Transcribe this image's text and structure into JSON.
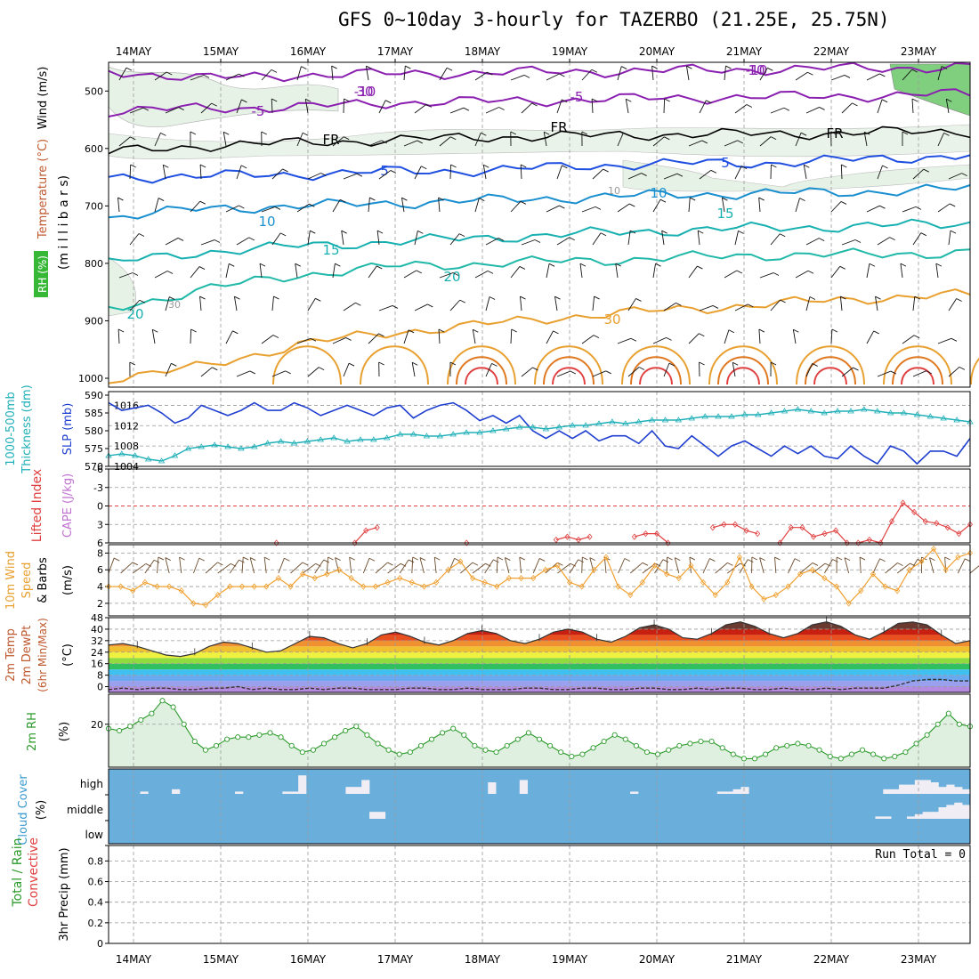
{
  "title": "GFS 0~10day 3-hourly for TAZERBO (21.25E, 25.75N)",
  "run_total": "Run Total = 0",
  "dates": [
    "14MAY",
    "15MAY",
    "16MAY",
    "17MAY",
    "18MAY",
    "19MAY",
    "20MAY",
    "21MAY",
    "22MAY",
    "23MAY"
  ],
  "colors": {
    "grid": "#9a9a9a",
    "slp": "#1f3fd0",
    "thickness": "#20b0b8",
    "lifted": "#e04040",
    "wind10": "#f0a030",
    "barb": "#6b4a2a",
    "rh": "#2a9a2a",
    "rhfill": "#e0f0e0",
    "cloud_bg": "#6aaedc",
    "cloud_hi": "#f0eef4",
    "temp_line": "#000000"
  },
  "chart_data": [
    {
      "type": "contour",
      "name": "upper-air",
      "ylabel_parts": [
        "RH (%)",
        "Temperature (°C)",
        "Wind (m/s)"
      ],
      "axis_label": "(m i l l i b a r s)",
      "y_ticks": [
        500,
        600,
        700,
        800,
        900,
        1000
      ],
      "ylim": [
        450,
        1000
      ],
      "isotherms": [
        {
          "label": "-10",
          "level": [
            465,
            478,
            472,
            470,
            468,
            466,
            464,
            462,
            460,
            458
          ]
        },
        {
          "label": "-5",
          "level": [
            535,
            530,
            528,
            520,
            518,
            515,
            512,
            510,
            508,
            505
          ]
        },
        {
          "label": "FR",
          "level": [
            607,
            595,
            590,
            585,
            580,
            578,
            575,
            575,
            572,
            570
          ]
        },
        {
          "label": "5",
          "level": [
            650,
            648,
            645,
            640,
            638,
            630,
            626,
            625,
            618,
            612
          ]
        },
        {
          "label": "10",
          "level": [
            720,
            705,
            700,
            695,
            690,
            685,
            680,
            678,
            675,
            670
          ]
        },
        {
          "label": "15",
          "level": [
            800,
            780,
            770,
            762,
            755,
            748,
            742,
            738,
            735,
            730
          ]
        },
        {
          "label": "20",
          "level": [
            880,
            845,
            820,
            805,
            800,
            795,
            790,
            785,
            785,
            780
          ]
        },
        {
          "label": "30",
          "level": [
            1000,
            980,
            940,
            920,
            905,
            890,
            880,
            870,
            860,
            855
          ]
        }
      ],
      "labels_text": [
        "-10",
        "-10",
        "-5",
        "-5",
        "FR",
        "FR",
        "FR",
        "5",
        "5",
        "10",
        "10",
        "10",
        "15",
        "15",
        "20",
        "20",
        "30",
        "30",
        "10",
        "30"
      ]
    },
    {
      "type": "line",
      "name": "slp-thickness",
      "ylabel_left": [
        "1000-500mb",
        "Thickness (dm)"
      ],
      "ylabel_right": "SLP (mb)",
      "left_ticks": [
        570,
        575,
        580,
        585,
        590
      ],
      "right_ticks": [
        1004,
        1008,
        1012,
        1016
      ],
      "series": [
        {
          "name": "SLP (mb)",
          "values": [
            1016.5,
            1015,
            1015.5,
            1016,
            1014.5,
            1012.5,
            1013.5,
            1016,
            1015,
            1014,
            1015,
            1016.5,
            1015,
            1015,
            1016.5,
            1015.5,
            1014,
            1015,
            1016,
            1015,
            1014,
            1015.5,
            1016,
            1013.5,
            1015,
            1016,
            1016.5,
            1015,
            1013,
            1014,
            1012.5,
            1014,
            1011,
            1009.5,
            1011,
            1009.5,
            1011,
            1009,
            1010,
            1010,
            1008.5,
            1011,
            1008,
            1007.5,
            1010,
            1008,
            1006,
            1008,
            1009,
            1007.5,
            1006,
            1008,
            1006.5,
            1008,
            1006,
            1005.5,
            1008,
            1006,
            1004.5,
            1008,
            1007,
            1004.5,
            1007,
            1007,
            1006,
            1009.5
          ]
        },
        {
          "name": "1000-500mb Thickness (dm)",
          "values": [
            573,
            573.5,
            573,
            572,
            571.5,
            573,
            575,
            575.5,
            576,
            575.5,
            575,
            575.5,
            576.5,
            577,
            576.5,
            577,
            577.5,
            578,
            577,
            577.5,
            577.5,
            578,
            579,
            579,
            578.5,
            578.5,
            579,
            579.5,
            579.5,
            580,
            580.5,
            581,
            581,
            580.5,
            581,
            581.5,
            581.5,
            582,
            582.5,
            582,
            582.5,
            583,
            583,
            583,
            583.5,
            584,
            584,
            584,
            584.5,
            584.5,
            585,
            585.5,
            586,
            585.5,
            585,
            585.5,
            585.5,
            586,
            585.5,
            585,
            585,
            584.5,
            584,
            583.5,
            583,
            582.5
          ]
        }
      ]
    },
    {
      "type": "line",
      "name": "lifted-index-cape",
      "ylabel_left": "Lifted Index",
      "ylabel_right": "CAPE (J/kg)",
      "y_ticks": [
        -6,
        -3,
        0,
        3,
        6
      ],
      "series": [
        {
          "name": "Lifted Index",
          "values": [
            7,
            7,
            7,
            7,
            7,
            7,
            7,
            7,
            7,
            7,
            7,
            7,
            7,
            7,
            7,
            6,
            7,
            7,
            7,
            7,
            7,
            7,
            6,
            4,
            3.5,
            7,
            7,
            7,
            7,
            7,
            7,
            7,
            6,
            7,
            7,
            7,
            7,
            7,
            7,
            7,
            5.5,
            5,
            5.5,
            5,
            7,
            7,
            7,
            5,
            4.5,
            4.5,
            6,
            7,
            7,
            7,
            3.5,
            3,
            3,
            4,
            4.5,
            7,
            6,
            3.5,
            3.5,
            5,
            4.5,
            4,
            6,
            6,
            5.5,
            6,
            2.5,
            -0.5,
            1,
            2.5,
            2.8,
            3.5,
            4.5,
            3
          ]
        }
      ]
    },
    {
      "type": "line",
      "name": "wind10m",
      "ylabel": [
        "10m Wind",
        "Speed",
        "& Barbs"
      ],
      "unit": "(m/s)",
      "y_ticks": [
        2,
        4,
        6,
        8
      ],
      "series": [
        {
          "name": "10m Wind Speed",
          "values": [
            4,
            4,
            3.5,
            4.5,
            4,
            4,
            3.5,
            2,
            1.8,
            3,
            4,
            4,
            4,
            4,
            5,
            4,
            5.5,
            5,
            5.5,
            6,
            5,
            4,
            4,
            4.5,
            5,
            4.5,
            4,
            4.5,
            6,
            7,
            5,
            4.5,
            4,
            5,
            5,
            5,
            6,
            6.5,
            4.5,
            4,
            6,
            7.5,
            4,
            3,
            4.5,
            6.5,
            5.5,
            5,
            6.5,
            4.5,
            3,
            4.5,
            7.5,
            4,
            2.5,
            3,
            4,
            5.5,
            6,
            5,
            4,
            2,
            3.5,
            5.5,
            4,
            3.5,
            6,
            7,
            8.5,
            6,
            7.5,
            8
          ]
        }
      ]
    },
    {
      "type": "line",
      "name": "temp2m",
      "ylabel": [
        "2m Temp",
        "2m DewPt",
        "(6hr Min/Max)"
      ],
      "unit": "(°C)",
      "y_ticks": [
        0,
        8,
        16,
        24,
        32,
        40,
        48
      ],
      "series": [
        {
          "name": "2m Temp",
          "values": [
            29,
            30,
            28,
            25,
            22,
            21,
            23,
            28,
            31,
            30,
            27,
            24,
            25,
            30,
            35,
            34,
            30,
            27,
            30,
            36,
            38,
            35,
            31,
            29,
            32,
            37,
            39,
            37,
            32,
            30,
            33,
            38,
            40,
            38,
            33,
            31,
            35,
            41,
            43,
            40,
            34,
            33,
            37,
            43,
            45,
            42,
            37,
            34,
            37,
            43,
            45,
            42,
            36,
            33,
            38,
            44,
            45,
            43,
            36,
            30,
            32
          ]
        },
        {
          "name": "2m DewPt",
          "values": [
            -2,
            -1,
            -2,
            -1,
            -1,
            -2,
            -2,
            -1,
            -1,
            0,
            -2,
            -1,
            -2,
            -2,
            -1,
            -2,
            -1,
            -1,
            -2,
            -2,
            -2,
            -1,
            -1,
            -2,
            -2,
            -1,
            -2,
            -2,
            -2,
            -1,
            -1,
            -2,
            -2,
            -1,
            -1,
            -2,
            -2,
            -1,
            -1,
            -2,
            -2,
            -1,
            -2,
            -1,
            -1,
            -2,
            -2,
            -1,
            -2,
            -2,
            -1,
            -2,
            -1,
            -1,
            -1,
            1,
            4,
            5,
            5,
            4,
            4
          ]
        }
      ]
    },
    {
      "type": "area",
      "name": "rh2m",
      "ylabel": "2m RH",
      "unit": "(%)",
      "y_ticks": [
        20
      ],
      "series": [
        {
          "name": "2m RH",
          "values": [
            18,
            17,
            19,
            22,
            25,
            31,
            28,
            20,
            12,
            8,
            10,
            13,
            14,
            14,
            15,
            16,
            14,
            10,
            7,
            8,
            11,
            14,
            17,
            19,
            15,
            11,
            8,
            6,
            7,
            10,
            13,
            16,
            18,
            15,
            10,
            8,
            7,
            10,
            13,
            16,
            13,
            10,
            7,
            5,
            6,
            9,
            12,
            15,
            13,
            10,
            7,
            6,
            8,
            10,
            11,
            12,
            12,
            9,
            6,
            4,
            4,
            6,
            9,
            10,
            11,
            10,
            8,
            5,
            4,
            6,
            8,
            6,
            4,
            5,
            7,
            11,
            15,
            20,
            25,
            20,
            19
          ]
        }
      ]
    },
    {
      "type": "heatmap",
      "name": "cloud-cover",
      "ylabel": "Cloud Cover",
      "unit": "(%)",
      "row_labels": [
        "high",
        "middle",
        "low"
      ],
      "high": [
        0,
        0,
        0,
        0,
        10,
        0,
        0,
        0,
        20,
        0,
        0,
        0,
        0,
        0,
        0,
        0,
        10,
        0,
        0,
        0,
        0,
        0,
        10,
        10,
        80,
        0,
        0,
        0,
        0,
        0,
        30,
        30,
        60,
        0,
        0,
        0,
        0,
        0,
        0,
        0,
        0,
        0,
        0,
        0,
        0,
        0,
        0,
        0,
        50,
        0,
        0,
        0,
        60,
        0,
        0,
        0,
        0,
        0,
        0,
        0,
        0,
        0,
        0,
        0,
        0,
        0,
        10,
        0,
        0,
        0,
        0,
        0,
        0,
        0,
        0,
        0,
        0,
        10,
        10,
        20,
        30,
        0,
        0,
        0,
        0,
        0,
        0,
        0,
        0,
        0,
        0,
        0,
        0,
        0,
        0,
        0,
        0,
        0,
        20,
        20,
        40,
        40,
        60,
        60,
        50,
        30,
        40,
        30,
        20
      ],
      "middle": [
        0,
        0,
        0,
        0,
        0,
        0,
        0,
        0,
        0,
        0,
        0,
        0,
        0,
        0,
        0,
        0,
        0,
        0,
        0,
        0,
        0,
        0,
        0,
        0,
        0,
        0,
        0,
        0,
        0,
        0,
        0,
        0,
        0,
        30,
        30,
        0,
        0,
        0,
        0,
        0,
        0,
        0,
        0,
        0,
        0,
        0,
        0,
        0,
        0,
        0,
        0,
        0,
        0,
        0,
        0,
        0,
        0,
        0,
        0,
        0,
        0,
        0,
        0,
        0,
        0,
        0,
        0,
        0,
        0,
        0,
        0,
        0,
        0,
        0,
        0,
        0,
        0,
        0,
        0,
        0,
        0,
        0,
        0,
        0,
        0,
        0,
        0,
        0,
        0,
        0,
        0,
        0,
        0,
        0,
        0,
        0,
        0,
        10,
        10,
        0,
        0,
        10,
        20,
        30,
        30,
        50,
        60,
        70,
        60
      ]
    },
    {
      "type": "line",
      "name": "precip",
      "ylabel": [
        "Total / Rain",
        "Convective"
      ],
      "axis_label": "3hr Precip (mm)",
      "y_ticks": [
        0,
        0.2,
        0.4,
        0.6,
        0.8
      ],
      "series": [
        {
          "name": "Total / Rain",
          "values": [
            0
          ]
        },
        {
          "name": "Convective",
          "values": [
            0
          ]
        }
      ]
    }
  ]
}
